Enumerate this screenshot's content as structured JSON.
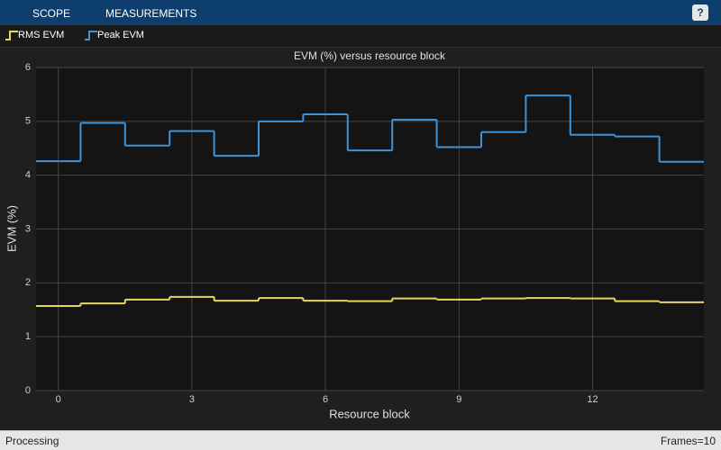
{
  "toolstrip": {
    "tabs": [
      "SCOPE",
      "MEASUREMENTS"
    ],
    "help": "?"
  },
  "status": {
    "left": "Processing",
    "right": "Frames=10"
  },
  "chart_data": {
    "type": "stairs",
    "title": "EVM (%) versus resource block",
    "xlabel": "Resource block",
    "ylabel": "EVM (%)",
    "x": [
      0,
      1,
      2,
      3,
      4,
      5,
      6,
      7,
      8,
      9,
      10,
      11,
      12,
      13,
      14
    ],
    "series": [
      {
        "name": "RMS EVM",
        "color": "#e8d65a",
        "values": [
          1.57,
          1.62,
          1.69,
          1.74,
          1.67,
          1.72,
          1.67,
          1.66,
          1.71,
          1.69,
          1.71,
          1.72,
          1.71,
          1.66,
          1.64
        ]
      },
      {
        "name": "Peak EVM",
        "color": "#3a93dc",
        "values": [
          4.26,
          4.97,
          4.55,
          4.82,
          4.36,
          5.0,
          5.13,
          4.46,
          5.03,
          4.52,
          4.8,
          5.48,
          4.75,
          4.72,
          4.25
        ]
      }
    ],
    "xlim": [
      -0.5,
      14.5
    ],
    "ylim": [
      0,
      6
    ],
    "xticks": [
      0,
      3,
      6,
      9,
      12
    ],
    "yticks": [
      0,
      1,
      2,
      3,
      4,
      5,
      6
    ],
    "grid": true,
    "legend": "top"
  }
}
